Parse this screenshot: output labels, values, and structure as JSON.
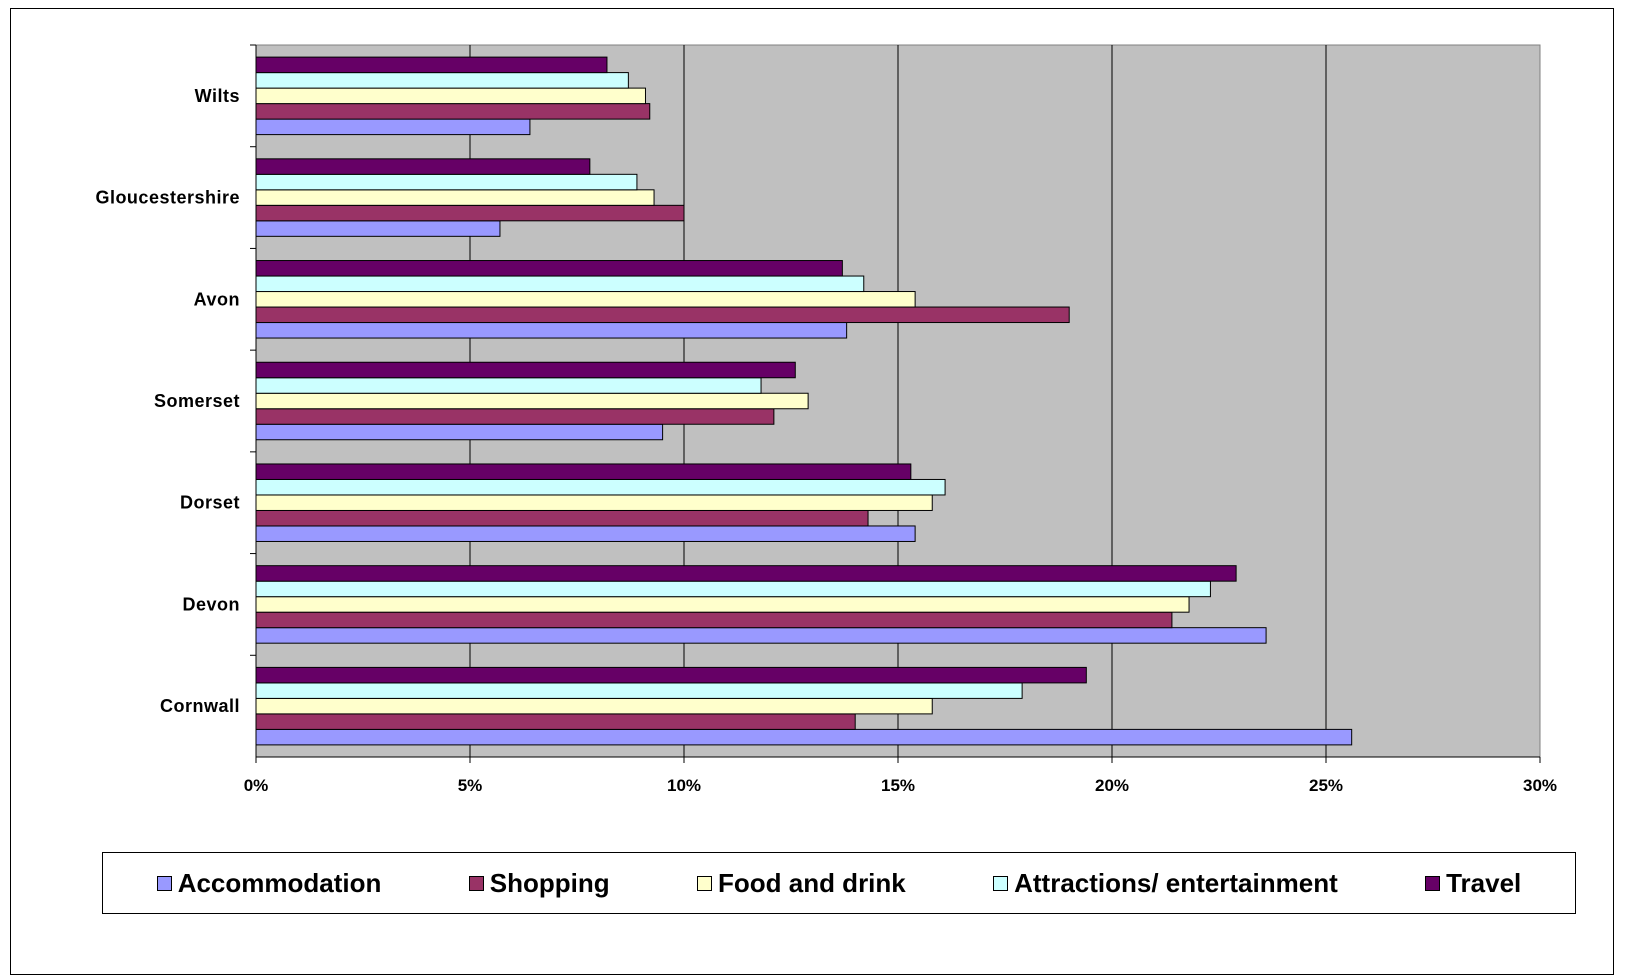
{
  "chart_data": {
    "type": "bar",
    "orientation": "horizontal",
    "categories": [
      "Cornwall",
      "Devon",
      "Dorset",
      "Somerset",
      "Avon",
      "Gloucestershire",
      "Wilts"
    ],
    "series": [
      {
        "name": "Accommodation",
        "color": "#9999ff",
        "values": [
          25.6,
          23.6,
          15.4,
          9.5,
          13.8,
          5.7,
          6.4
        ]
      },
      {
        "name": "Shopping",
        "color": "#993366",
        "values": [
          14.0,
          21.4,
          14.3,
          12.1,
          19.0,
          10.0,
          9.2
        ]
      },
      {
        "name": "Food and drink",
        "color": "#ffffcc",
        "values": [
          15.8,
          21.8,
          15.8,
          12.9,
          15.4,
          9.3,
          9.1
        ]
      },
      {
        "name": "Attractions/ entertainment",
        "color": "#ccffff",
        "values": [
          17.9,
          22.3,
          16.1,
          11.8,
          14.2,
          8.9,
          8.7
        ]
      },
      {
        "name": "Travel",
        "color": "#660066",
        "values": [
          19.4,
          22.9,
          15.3,
          12.6,
          13.7,
          7.8,
          8.2
        ]
      }
    ],
    "x_ticks": [
      "0%",
      "5%",
      "10%",
      "15%",
      "20%",
      "25%",
      "30%"
    ],
    "xlim": [
      0,
      30
    ],
    "grid": true,
    "plot_background": "#c0c0c0",
    "legend_position": "bottom"
  }
}
